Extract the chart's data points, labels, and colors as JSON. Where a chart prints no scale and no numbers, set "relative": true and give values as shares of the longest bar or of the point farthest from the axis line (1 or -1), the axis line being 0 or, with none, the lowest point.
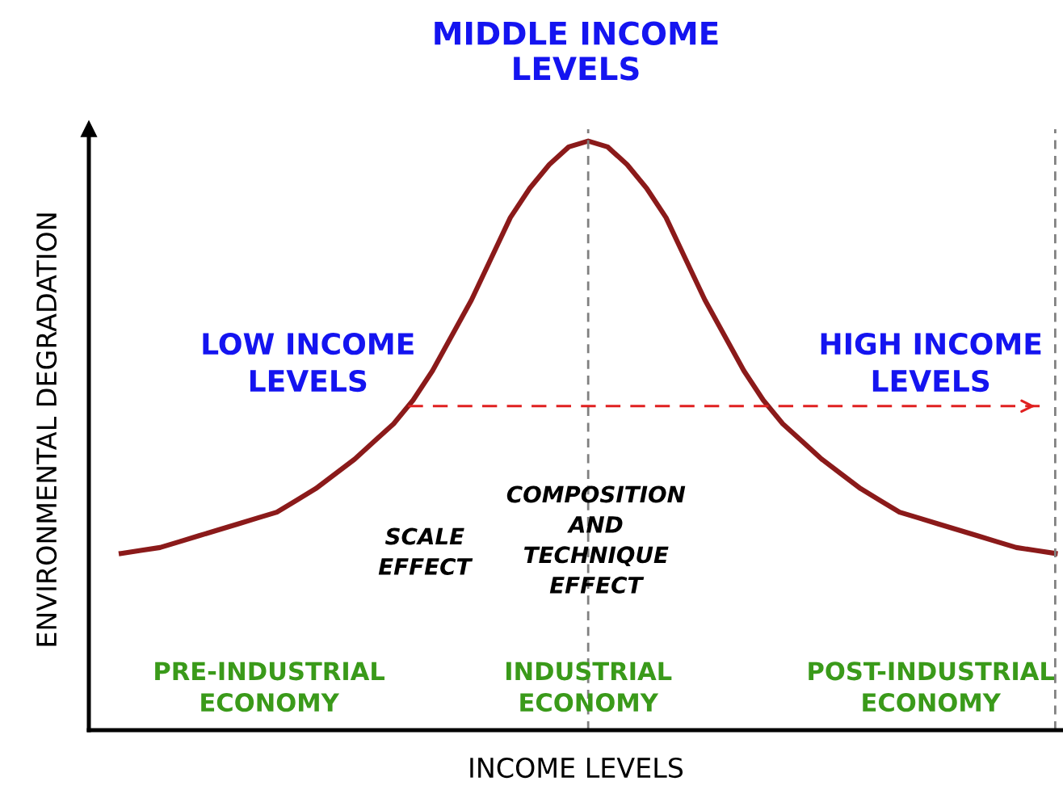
{
  "chart_data": {
    "type": "line",
    "relative": true,
    "title": "MIDDLE INCOME\nLEVELS",
    "xlabel": "INCOME LEVELS",
    "ylabel": "ENVIRONMENTAL DEGRADATION",
    "categories": [
      null,
      null,
      null,
      null,
      null,
      null,
      null,
      null,
      null,
      null,
      null,
      null,
      null,
      null,
      null,
      null,
      null,
      null,
      null,
      null,
      null,
      null,
      null,
      null,
      null,
      null,
      null,
      null,
      null,
      null,
      null,
      null,
      null,
      null,
      null,
      null,
      null,
      null,
      null,
      null,
      null,
      null,
      null,
      null,
      null,
      null,
      null,
      null,
      null
    ],
    "series": [
      {
        "color": "#8b1a1a",
        "values": [
          0.3,
          0.305,
          0.31,
          0.32,
          0.33,
          0.34,
          0.35,
          0.36,
          0.37,
          0.39,
          0.41,
          0.435,
          0.46,
          0.49,
          0.52,
          0.56,
          0.61,
          0.67,
          0.73,
          0.8,
          0.87,
          0.92,
          0.96,
          0.99,
          1,
          0.99,
          0.96,
          0.92,
          0.87,
          0.8,
          0.73,
          0.67,
          0.61,
          0.56,
          0.52,
          0.49,
          0.46,
          0.435,
          0.41,
          0.39,
          0.37,
          0.36,
          0.35,
          0.34,
          0.33,
          0.32,
          0.31,
          0.305,
          0.3
        ]
      }
    ],
    "ref_lines": [
      {
        "axis": "y",
        "value": 0.55,
        "color": "#e02020",
        "line_style": "dashed"
      }
    ],
    "annotations": [
      "LOW INCOME\nLEVELS",
      "HIGH INCOME\nLEVELS",
      "SCALE\nEFFECT",
      "COMPOSITION\nAND\nTECHNIQUE\nEFFECT",
      "PRE-INDUSTRIAL\nECONOMY",
      "INDUSTRIAL\nECONOMY",
      "POST-INDUSTRIAL\nECONOMY"
    ],
    "marker": "none",
    "line_style": "solid"
  }
}
